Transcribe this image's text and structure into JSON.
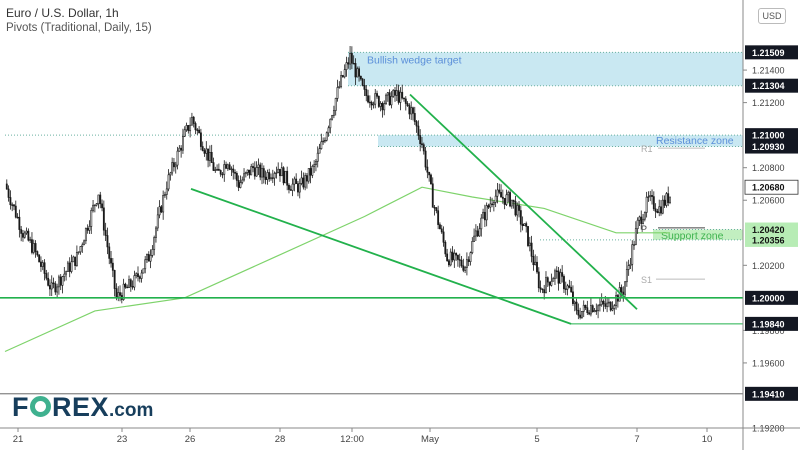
{
  "header": {
    "title": "Euro / U.S. Dollar, 1h",
    "indicator": "Pivots (Traditional, Daily, 15)"
  },
  "currency_label": "USD",
  "logo": {
    "left": "F",
    "right": "REX",
    "suffix": ".com",
    "icon": "forex-logo-o-icon"
  },
  "colors": {
    "candle": "#1a1a1a",
    "trendline": "#22b14c",
    "ma": "#7ed36b",
    "zone": "#bfe4f0",
    "zone_text": "#5b8fd9",
    "support_zone": "#b7ecb5",
    "support_text": "#3fb34f",
    "grid": "#c8c8c8"
  },
  "chart_data": {
    "type": "candlestick",
    "title": "Euro / U.S. Dollar, 1h",
    "ylim": [
      1.192,
      1.218
    ],
    "x_ticks": [
      "21",
      "23",
      "26",
      "28",
      "12:00",
      "May",
      "5",
      "7",
      "10"
    ],
    "y_ticks": [
      "1.21400",
      "1.21200",
      "1.20800",
      "1.20600",
      "1.20200",
      "1.19800",
      "1.19600",
      "1.19200"
    ],
    "price_labels": [
      {
        "value": 1.21509,
        "text": "1.21509",
        "style": "dark"
      },
      {
        "value": 1.21304,
        "text": "1.21304",
        "style": "dark"
      },
      {
        "value": 1.21,
        "text": "1.21000",
        "style": "dark"
      },
      {
        "value": 1.2093,
        "text": "1.20930",
        "style": "dark"
      },
      {
        "value": 1.2068,
        "text": "1.20680",
        "style": "white"
      },
      {
        "value": 1.2042,
        "text": "1.20420",
        "style": "green"
      },
      {
        "value": 1.20356,
        "text": "1.20356",
        "style": "green"
      },
      {
        "value": 1.2,
        "text": "1.20000",
        "style": "dark"
      },
      {
        "value": 1.1984,
        "text": "1.19840",
        "style": "dark"
      },
      {
        "value": 1.1941,
        "text": "1.19410",
        "style": "dark"
      }
    ],
    "zones": [
      {
        "label": "Bullish wedge target",
        "from": 1.21304,
        "to": 1.21509,
        "kind": "target"
      },
      {
        "label": "Resistance zone",
        "from": 1.2093,
        "to": 1.21,
        "kind": "resistance"
      },
      {
        "label": "Support zone",
        "from": 1.20356,
        "to": 1.2042,
        "kind": "support"
      }
    ],
    "horizontal_lines": [
      1.2,
      1.1941
    ],
    "pivots": [
      {
        "label": "R1",
        "value": 1.2092
      },
      {
        "label": "P",
        "value": 1.2043
      },
      {
        "label": "S1",
        "value": 1.20115
      }
    ],
    "wedge_upper": {
      "from": {
        "x": "Apr 30",
        "y": 1.2125
      },
      "to": {
        "x": "May 6",
        "y": 1.1993
      }
    },
    "wedge_lower": {
      "from": {
        "x": "Apr 26",
        "y": 1.2067
      },
      "to": {
        "x": "May 5",
        "y": 1.1984
      }
    },
    "anchors": [
      {
        "t": 0,
        "p": 1.207
      },
      {
        "t": 10,
        "p": 1.204
      },
      {
        "t": 16,
        "p": 1.203
      },
      {
        "t": 26,
        "p": 1.2005
      },
      {
        "t": 40,
        "p": 1.2025
      },
      {
        "t": 52,
        "p": 1.2065
      },
      {
        "t": 58,
        "p": 1.2025
      },
      {
        "t": 62,
        "p": 1.2
      },
      {
        "t": 72,
        "p": 1.201
      },
      {
        "t": 80,
        "p": 1.2025
      },
      {
        "t": 90,
        "p": 1.207
      },
      {
        "t": 100,
        "p": 1.21
      },
      {
        "t": 104,
        "p": 1.211
      },
      {
        "t": 112,
        "p": 1.209
      },
      {
        "t": 118,
        "p": 1.2075
      },
      {
        "t": 124,
        "p": 1.2085
      },
      {
        "t": 130,
        "p": 1.207
      },
      {
        "t": 138,
        "p": 1.208
      },
      {
        "t": 144,
        "p": 1.2075
      },
      {
        "t": 152,
        "p": 1.208
      },
      {
        "t": 158,
        "p": 1.207
      },
      {
        "t": 164,
        "p": 1.2068
      },
      {
        "t": 172,
        "p": 1.208
      },
      {
        "t": 178,
        "p": 1.21
      },
      {
        "t": 186,
        "p": 1.213
      },
      {
        "t": 192,
        "p": 1.2148
      },
      {
        "t": 200,
        "p": 1.2125
      },
      {
        "t": 210,
        "p": 1.212
      },
      {
        "t": 218,
        "p": 1.2125
      },
      {
        "t": 226,
        "p": 1.2115
      },
      {
        "t": 232,
        "p": 1.2095
      },
      {
        "t": 238,
        "p": 1.206
      },
      {
        "t": 246,
        "p": 1.2025
      },
      {
        "t": 256,
        "p": 1.202
      },
      {
        "t": 262,
        "p": 1.204
      },
      {
        "t": 272,
        "p": 1.2063
      },
      {
        "t": 282,
        "p": 1.206
      },
      {
        "t": 290,
        "p": 1.204
      },
      {
        "t": 298,
        "p": 1.2005
      },
      {
        "t": 306,
        "p": 1.2015
      },
      {
        "t": 314,
        "p": 1.2005
      },
      {
        "t": 318,
        "p": 1.199
      },
      {
        "t": 326,
        "p": 1.1995
      },
      {
        "t": 336,
        "p": 1.1995
      },
      {
        "t": 344,
        "p": 1.2005
      },
      {
        "t": 352,
        "p": 1.2045
      },
      {
        "t": 358,
        "p": 1.206
      },
      {
        "t": 364,
        "p": 1.2055
      },
      {
        "t": 370,
        "p": 1.2063
      }
    ],
    "ma_points": [
      {
        "t": 0,
        "p": 1.1967
      },
      {
        "t": 50,
        "p": 1.1992
      },
      {
        "t": 100,
        "p": 1.2
      },
      {
        "t": 150,
        "p": 1.2025
      },
      {
        "t": 200,
        "p": 1.205
      },
      {
        "t": 232,
        "p": 1.2068
      },
      {
        "t": 260,
        "p": 1.2062
      },
      {
        "t": 300,
        "p": 1.2055
      },
      {
        "t": 340,
        "p": 1.204
      },
      {
        "t": 370,
        "p": 1.204
      }
    ]
  }
}
